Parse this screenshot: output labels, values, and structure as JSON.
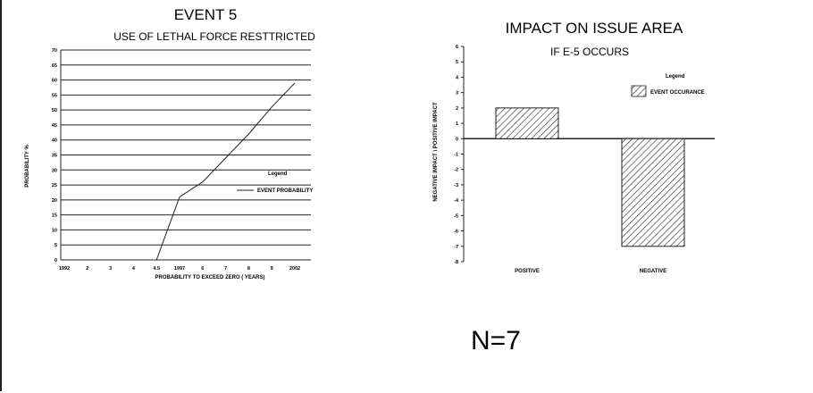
{
  "chart_data": [
    {
      "type": "line",
      "title": "EVENT 5",
      "subtitle": "USE OF LETHAL FORCE RESTTRICTED",
      "xlabel": "PROBABILITY TO EXCEED ZERO ( YEARS)",
      "ylabel": "PROBABILITY %",
      "x_ticks": [
        "1992",
        "2",
        "3",
        "4",
        "4.5",
        "1997",
        "6",
        "7",
        "8",
        "9",
        "2002"
      ],
      "y_ticks": [
        "0",
        "5",
        "10",
        "15",
        "20",
        "25",
        "30",
        "35",
        "40",
        "45",
        "50",
        "55",
        "60",
        "65",
        "70"
      ],
      "ylim": [
        0,
        70
      ],
      "legend_title": "Legend",
      "series": [
        {
          "name": "EVENT PROBABILITY",
          "x": [
            "4.5",
            "1997",
            "6",
            "7",
            "8",
            "9",
            "2002"
          ],
          "y": [
            0,
            21,
            26,
            34,
            42,
            51,
            59
          ]
        }
      ],
      "grid": true
    },
    {
      "type": "bar",
      "title": "IMPACT ON ISSUE AREA",
      "subtitle": "IF E-5 OCCURS",
      "ylabel": "NEGATIVE IMPACT \\ POSITIVE IMPACT",
      "categories": [
        "POSITIVE",
        "NEGATIVE"
      ],
      "y_ticks": [
        "6",
        "5",
        "4",
        "3",
        "2",
        "1",
        "0",
        "-1",
        "-2",
        "-3",
        "-4",
        "-5",
        "-6",
        "-7",
        "-8"
      ],
      "ylim": [
        -8,
        6
      ],
      "legend_title": "Legend",
      "series": [
        {
          "name": "EVENT OCCURANCE",
          "values": [
            2,
            -7
          ]
        }
      ]
    }
  ],
  "note": "N=7"
}
